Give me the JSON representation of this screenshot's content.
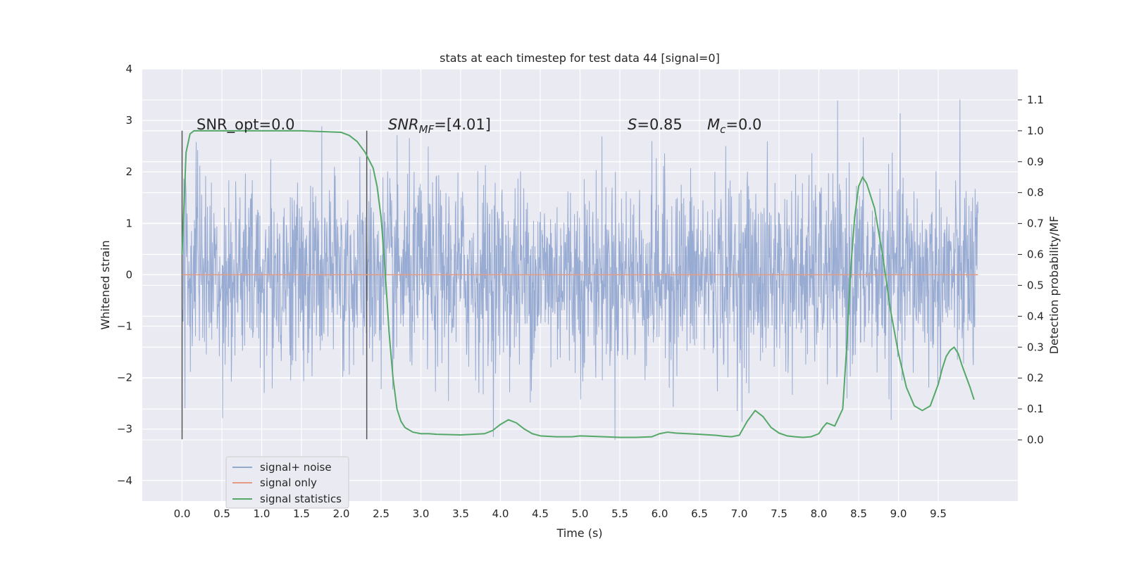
{
  "chart_data": {
    "type": "line",
    "title": "stats at each timestep for test data 44 [signal=0]",
    "xlabel": "Time (s)",
    "ylabel": "Whitened strain",
    "y2label": "Detection probability/MF",
    "xlim": [
      -0.5,
      10.5
    ],
    "ylim": [
      -4.4,
      4.0
    ],
    "y2lim": [
      -0.198,
      1.2
    ],
    "x_ticks": [
      "0.0",
      "0.5",
      "1.0",
      "1.5",
      "2.0",
      "2.5",
      "3.0",
      "3.5",
      "4.0",
      "4.5",
      "5.0",
      "5.5",
      "6.0",
      "6.5",
      "7.0",
      "7.5",
      "8.0",
      "8.5",
      "9.0",
      "9.5"
    ],
    "y_ticks": [
      "4",
      "3",
      "2",
      "1",
      "0",
      "−1",
      "−2",
      "−3",
      "−4"
    ],
    "y2_ticks": [
      "0.0",
      "0.1",
      "0.2",
      "0.3",
      "0.4",
      "0.5",
      "0.6",
      "0.7",
      "0.8",
      "0.9",
      "1.0",
      "1.1"
    ],
    "grid": true,
    "legend_position": "lower-left",
    "annotations": {
      "snr_opt": "SNR_opt=0.0",
      "snr_mf_italic": "SNR",
      "snr_mf_sub": "MF",
      "snr_mf_rest": "=[4.01]",
      "s_italic": "S",
      "s_rest": "=0.85",
      "mc_italic": "M",
      "mc_sub": "c",
      "mc_rest": "=0.0"
    },
    "vertical_markers": [
      0.0,
      2.32
    ],
    "series": [
      {
        "name": "signal+ noise",
        "color": "#94a8d0",
        "noise_std": 0.95,
        "x_range": [
          0.0,
          10.0
        ]
      },
      {
        "name": "signal only",
        "color": "#e59c83",
        "x": [
          0.0,
          10.0
        ],
        "values": [
          0.0,
          0.0
        ]
      },
      {
        "name": "signal statistics",
        "color": "#55a868",
        "x": [
          0.0,
          0.05,
          0.1,
          0.15,
          0.2,
          0.3,
          0.5,
          1.0,
          1.5,
          2.0,
          2.1,
          2.2,
          2.3,
          2.4,
          2.45,
          2.5,
          2.55,
          2.6,
          2.65,
          2.7,
          2.75,
          2.8,
          2.9,
          3.0,
          3.1,
          3.2,
          3.5,
          3.8,
          3.9,
          4.0,
          4.1,
          4.2,
          4.3,
          4.4,
          4.5,
          4.7,
          4.9,
          5.0,
          5.1,
          5.3,
          5.5,
          5.7,
          5.9,
          6.0,
          6.1,
          6.2,
          6.5,
          6.7,
          6.8,
          6.9,
          7.0,
          7.1,
          7.2,
          7.3,
          7.4,
          7.5,
          7.6,
          7.7,
          7.8,
          7.9,
          8.0,
          8.05,
          8.1,
          8.2,
          8.3,
          8.35,
          8.4,
          8.45,
          8.5,
          8.55,
          8.6,
          8.7,
          8.8,
          8.9,
          9.0,
          9.1,
          9.2,
          9.3,
          9.4,
          9.5,
          9.55,
          9.6,
          9.65,
          9.7,
          9.75,
          9.8,
          9.9,
          9.95
        ],
        "values": [
          0.6,
          0.93,
          0.99,
          1.0,
          1.0,
          1.0,
          1.0,
          1.0,
          1.0,
          0.995,
          0.985,
          0.965,
          0.93,
          0.88,
          0.82,
          0.72,
          0.55,
          0.35,
          0.2,
          0.1,
          0.06,
          0.04,
          0.025,
          0.02,
          0.02,
          0.018,
          0.016,
          0.02,
          0.03,
          0.05,
          0.065,
          0.055,
          0.035,
          0.02,
          0.013,
          0.01,
          0.01,
          0.013,
          0.012,
          0.01,
          0.008,
          0.008,
          0.01,
          0.02,
          0.025,
          0.022,
          0.018,
          0.015,
          0.012,
          0.01,
          0.015,
          0.06,
          0.095,
          0.075,
          0.04,
          0.022,
          0.013,
          0.01,
          0.008,
          0.01,
          0.02,
          0.04,
          0.055,
          0.045,
          0.1,
          0.3,
          0.55,
          0.72,
          0.82,
          0.85,
          0.83,
          0.75,
          0.6,
          0.42,
          0.28,
          0.17,
          0.11,
          0.095,
          0.11,
          0.18,
          0.23,
          0.27,
          0.29,
          0.3,
          0.28,
          0.24,
          0.17,
          0.13
        ]
      }
    ]
  }
}
